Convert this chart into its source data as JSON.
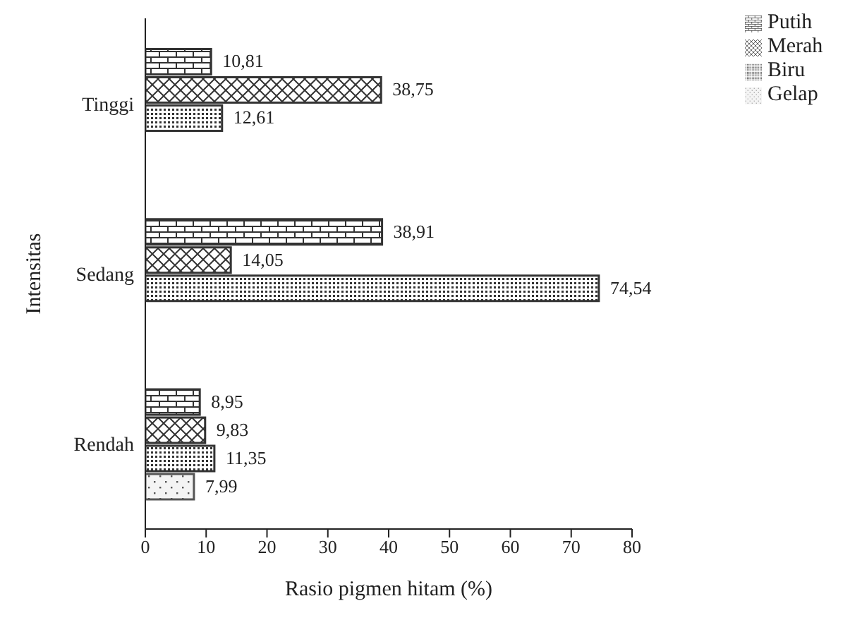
{
  "chart_data": {
    "type": "bar",
    "orientation": "horizontal",
    "xlabel": "Rasio pigmen hitam (%)",
    "ylabel": "Intensitas",
    "categories": [
      "Tinggi",
      "Sedang",
      "Rendah"
    ],
    "series": [
      {
        "name": "Putih",
        "color": "#333333",
        "values": [
          10.81,
          38.91,
          8.95
        ],
        "value_labels": [
          "10,81",
          "38,91",
          "8,95"
        ]
      },
      {
        "name": "Merah",
        "color": "#333333",
        "values": [
          38.75,
          14.05,
          9.83
        ],
        "value_labels": [
          "38,75",
          "14,05",
          "9,83"
        ]
      },
      {
        "name": "Biru",
        "color": "#333333",
        "values": [
          12.61,
          74.54,
          11.35
        ],
        "value_labels": [
          "12,61",
          "74,54",
          "11,35"
        ]
      },
      {
        "name": "Gelap",
        "color": "#555555",
        "values": [
          null,
          null,
          7.99
        ],
        "value_labels": [
          null,
          null,
          "7,99"
        ]
      }
    ],
    "xlim": [
      0,
      80
    ],
    "xticks": [
      0,
      10,
      20,
      30,
      40,
      50,
      60,
      70,
      80
    ],
    "grid": false,
    "legend": "top right"
  }
}
